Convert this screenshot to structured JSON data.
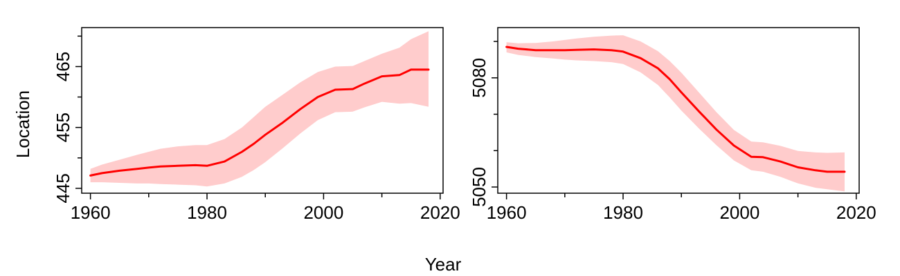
{
  "figure": {
    "ylabel": "Location",
    "xlabel": "Year"
  },
  "chart_data": [
    {
      "type": "line",
      "title": "",
      "xlabel": "Year",
      "ylabel": "Location",
      "xlim": [
        1958.5,
        2020.5
      ],
      "ylim": [
        444.2,
        471.4
      ],
      "xticks": [
        1960,
        1980,
        2000,
        2020
      ],
      "xticks_minor": [
        1970,
        1990,
        2010
      ],
      "yticks": [
        445,
        455,
        465
      ],
      "yticks_minor": [
        450,
        460,
        470
      ],
      "grid": false,
      "series": [
        {
          "name": "Location",
          "color": "#ff0000",
          "band_color": "#ffcccc",
          "x": [
            1960,
            1962,
            1965,
            1968,
            1970,
            1972,
            1975,
            1978,
            1980,
            1983,
            1986,
            1988,
            1990,
            1993,
            1996,
            1999,
            2002,
            2005,
            2007,
            2010,
            2013,
            2015,
            2018
          ],
          "y": [
            447.1,
            447.5,
            447.9,
            448.2,
            448.4,
            448.6,
            448.7,
            448.8,
            448.7,
            449.4,
            451.0,
            452.3,
            453.8,
            455.8,
            458.0,
            460.0,
            461.2,
            461.3,
            462.2,
            463.4,
            463.6,
            464.5,
            464.5
          ],
          "lower": [
            446.0,
            446.0,
            445.9,
            445.8,
            445.8,
            445.7,
            445.6,
            445.5,
            445.3,
            445.8,
            446.9,
            448.0,
            449.3,
            451.6,
            454.0,
            456.2,
            457.5,
            457.6,
            458.3,
            459.2,
            458.9,
            459.0,
            458.4
          ],
          "upper": [
            448.2,
            448.9,
            449.7,
            450.5,
            451.0,
            451.5,
            451.9,
            452.1,
            452.1,
            453.1,
            455.0,
            456.7,
            458.4,
            460.4,
            462.4,
            464.1,
            465.0,
            465.1,
            465.9,
            467.1,
            468.1,
            469.5,
            470.8
          ]
        }
      ]
    },
    {
      "type": "line",
      "title": "",
      "xlabel": "Year",
      "ylabel": "Location",
      "xlim": [
        1958.5,
        2020.5
      ],
      "ylim": [
        5048.3,
        5093.8
      ],
      "xticks": [
        1960,
        1980,
        2000,
        2020
      ],
      "xticks_minor": [
        1970,
        1990,
        2010
      ],
      "yticks": [
        5050,
        5080
      ],
      "yticks_minor": [
        5060,
        5070,
        5090
      ],
      "grid": false,
      "series": [
        {
          "name": "Location",
          "color": "#ff0000",
          "band_color": "#ffcccc",
          "x": [
            1960,
            1962,
            1965,
            1968,
            1970,
            1972,
            1975,
            1978,
            1980,
            1983,
            1986,
            1988,
            1990,
            1993,
            1996,
            1999,
            2002,
            2004,
            2007,
            2010,
            2013,
            2015,
            2018
          ],
          "y": [
            5088.5,
            5088.0,
            5087.6,
            5087.6,
            5087.6,
            5087.7,
            5087.8,
            5087.6,
            5087.2,
            5085.4,
            5082.6,
            5079.6,
            5076.0,
            5070.8,
            5065.8,
            5061.4,
            5058.3,
            5058.2,
            5057.0,
            5055.4,
            5054.6,
            5054.2,
            5054.2
          ],
          "lower": [
            5087.0,
            5086.3,
            5085.7,
            5085.3,
            5085.0,
            5084.8,
            5084.6,
            5084.3,
            5083.8,
            5081.5,
            5078.0,
            5074.6,
            5071.0,
            5066.1,
            5061.5,
            5057.3,
            5054.6,
            5054.2,
            5052.8,
            5051.0,
            5049.8,
            5049.4,
            5048.8
          ],
          "upper": [
            5089.8,
            5089.5,
            5089.6,
            5090.0,
            5090.4,
            5090.8,
            5091.3,
            5091.6,
            5091.7,
            5090.0,
            5087.3,
            5084.6,
            5081.4,
            5076.0,
            5070.6,
            5065.7,
            5062.5,
            5062.3,
            5061.3,
            5059.9,
            5059.5,
            5059.4,
            5059.5
          ]
        }
      ]
    }
  ]
}
